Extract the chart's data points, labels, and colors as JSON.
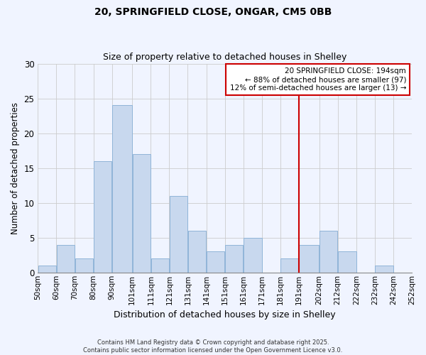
{
  "title": "20, SPRINGFIELD CLOSE, ONGAR, CM5 0BB",
  "subtitle": "Size of property relative to detached houses in Shelley",
  "xlabel": "Distribution of detached houses by size in Shelley",
  "ylabel": "Number of detached properties",
  "bins": [
    50,
    60,
    70,
    80,
    90,
    101,
    111,
    121,
    131,
    141,
    151,
    161,
    171,
    181,
    191,
    202,
    212,
    222,
    232,
    242,
    252
  ],
  "counts": [
    1,
    4,
    2,
    16,
    24,
    17,
    2,
    11,
    6,
    3,
    4,
    5,
    0,
    2,
    4,
    6,
    3,
    0,
    1,
    0
  ],
  "tick_labels": [
    "50sqm",
    "60sqm",
    "70sqm",
    "80sqm",
    "90sqm",
    "101sqm",
    "111sqm",
    "121sqm",
    "131sqm",
    "141sqm",
    "151sqm",
    "161sqm",
    "171sqm",
    "181sqm",
    "191sqm",
    "202sqm",
    "212sqm",
    "222sqm",
    "232sqm",
    "242sqm",
    "252sqm"
  ],
  "bar_color": "#c8d8ee",
  "bar_edge_color": "#90b4d8",
  "grid_color": "#cccccc",
  "vline_x": 191,
  "vline_color": "#cc0000",
  "annotation_title": "20 SPRINGFIELD CLOSE: 194sqm",
  "annotation_line1": "← 88% of detached houses are smaller (97)",
  "annotation_line2": "12% of semi-detached houses are larger (13) →",
  "annotation_box_color": "#ffffff",
  "annotation_box_edge": "#cc0000",
  "footer1": "Contains HM Land Registry data © Crown copyright and database right 2025.",
  "footer2": "Contains public sector information licensed under the Open Government Licence v3.0.",
  "ylim": [
    0,
    30
  ],
  "background_color": "#f0f4ff"
}
